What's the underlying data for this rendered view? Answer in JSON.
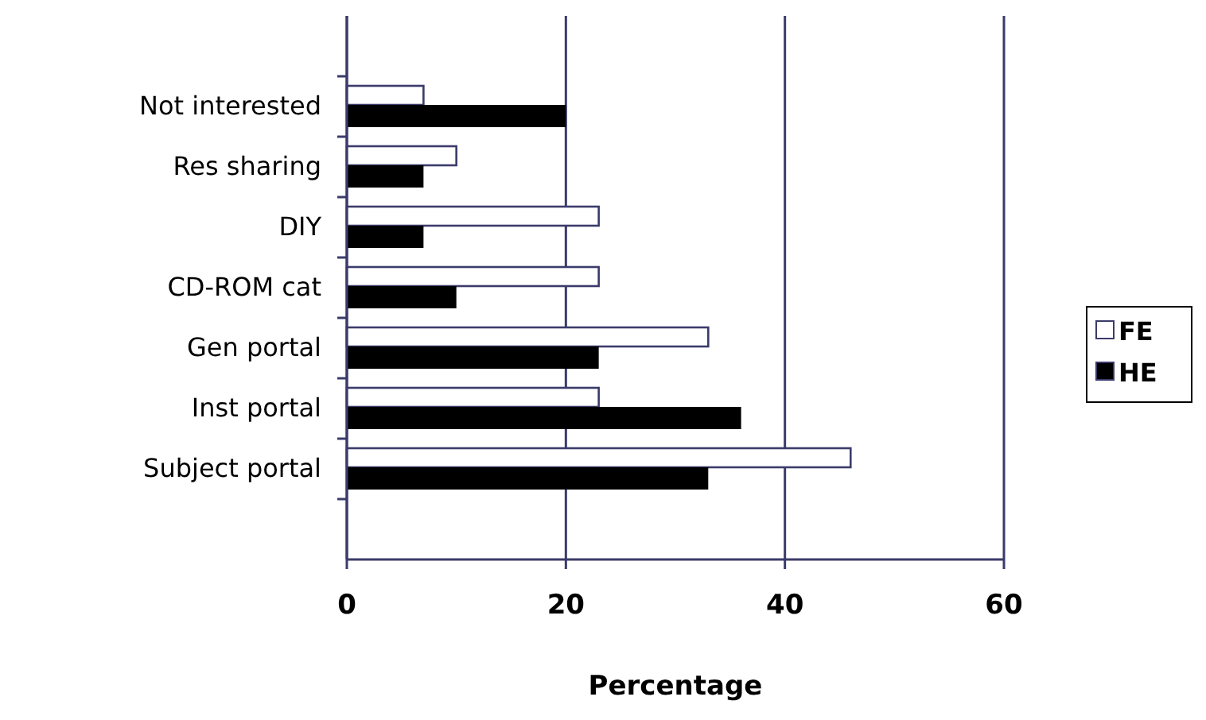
{
  "chart_data": {
    "type": "bar",
    "orientation": "horizontal",
    "xlabel": "Percentage",
    "categories": [
      "Not interested",
      "Res sharing",
      "DIY",
      "CD-ROM cat",
      "Gen portal",
      "Inst portal",
      "Subject portal"
    ],
    "series": [
      {
        "name": "FE",
        "color": "#ffffff",
        "values": [
          7,
          10,
          23,
          23,
          33,
          23,
          46
        ]
      },
      {
        "name": "HE",
        "color": "#000000",
        "values": [
          20,
          7,
          7,
          10,
          23,
          36,
          33
        ]
      }
    ],
    "xlim": [
      0,
      60
    ],
    "xticks": [
      0,
      20,
      40,
      60
    ],
    "grid": "x",
    "legend": "right"
  }
}
